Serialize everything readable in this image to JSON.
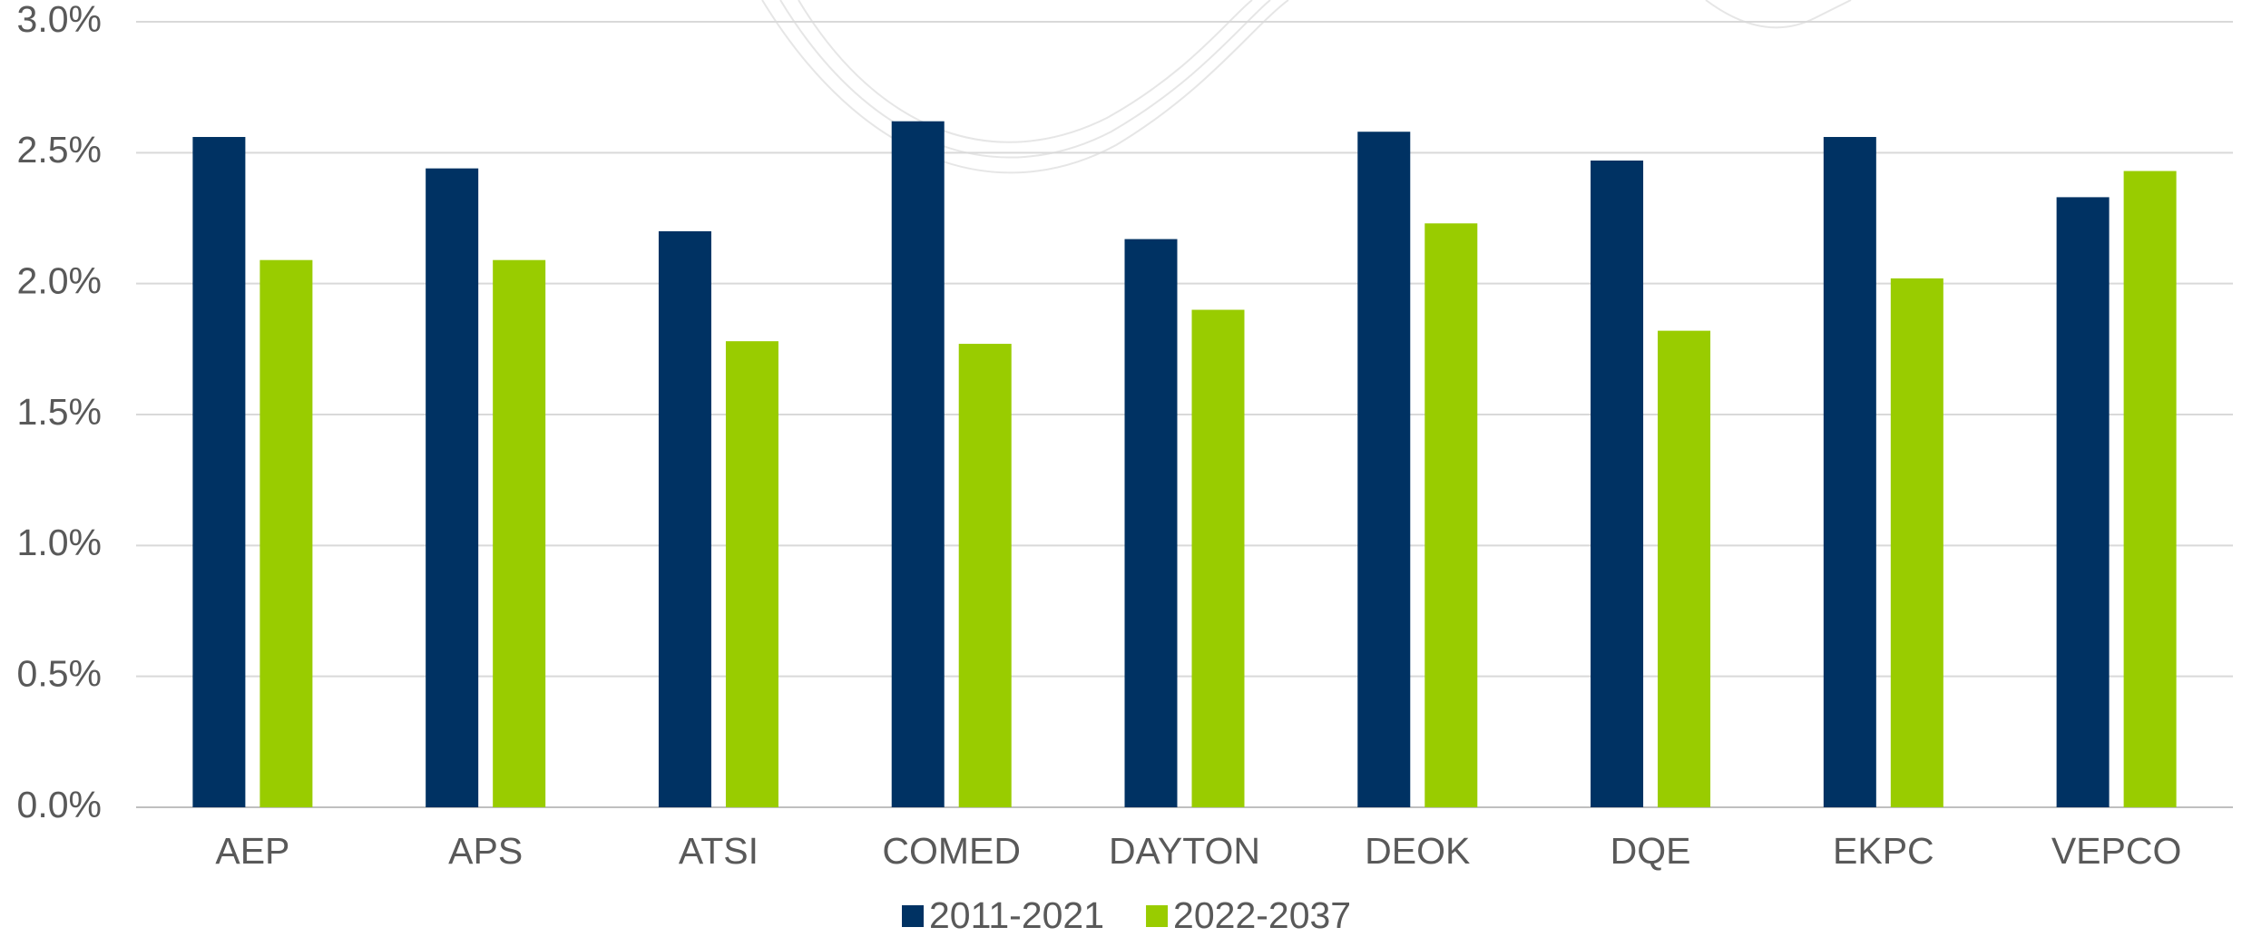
{
  "chart_data": {
    "type": "bar",
    "categories": [
      "AEP",
      "APS",
      "ATSI",
      "COMED",
      "DAYTON",
      "DEOK",
      "DQE",
      "EKPC",
      "VEPCO"
    ],
    "series": [
      {
        "name": "2011-2021",
        "color": "#003263",
        "values": [
          2.56,
          2.44,
          2.2,
          2.62,
          2.17,
          2.58,
          2.47,
          2.56,
          2.33
        ]
      },
      {
        "name": "2022-2037",
        "color": "#99cc00",
        "values": [
          2.09,
          2.09,
          1.78,
          1.77,
          1.9,
          2.23,
          1.82,
          2.02,
          2.43
        ]
      }
    ],
    "ylim": [
      0,
      3
    ],
    "yticks": [
      {
        "value": 0,
        "label": "0.0%"
      },
      {
        "value": 0.5,
        "label": "0.5%"
      },
      {
        "value": 1,
        "label": "1.0%"
      },
      {
        "value": 1.5,
        "label": "1.5%"
      },
      {
        "value": 2,
        "label": "2.0%"
      },
      {
        "value": 2.5,
        "label": "2.5%"
      },
      {
        "value": 3,
        "label": "3.0%"
      }
    ],
    "grid": true,
    "legend": "bottom"
  }
}
